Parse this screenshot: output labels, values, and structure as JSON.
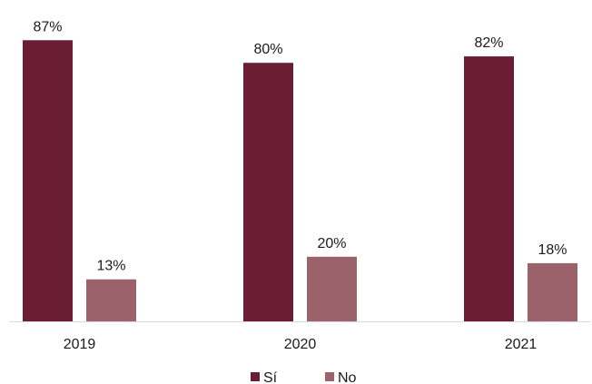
{
  "chart_data": {
    "type": "bar",
    "categories": [
      "2019",
      "2020",
      "2021"
    ],
    "series": [
      {
        "name": "Sí",
        "color": "#6b1d33",
        "values": [
          87,
          80,
          82
        ],
        "labels": [
          "87%",
          "80%",
          "82%"
        ]
      },
      {
        "name": "No",
        "color": "#9b626c",
        "values": [
          13,
          20,
          18
        ],
        "labels": [
          "13%",
          "20%",
          "18%"
        ]
      }
    ],
    "unit": "%",
    "ylim": [
      0,
      100
    ],
    "grid": false,
    "legend_position": "bottom",
    "axis_color": "#d9d9d9"
  }
}
